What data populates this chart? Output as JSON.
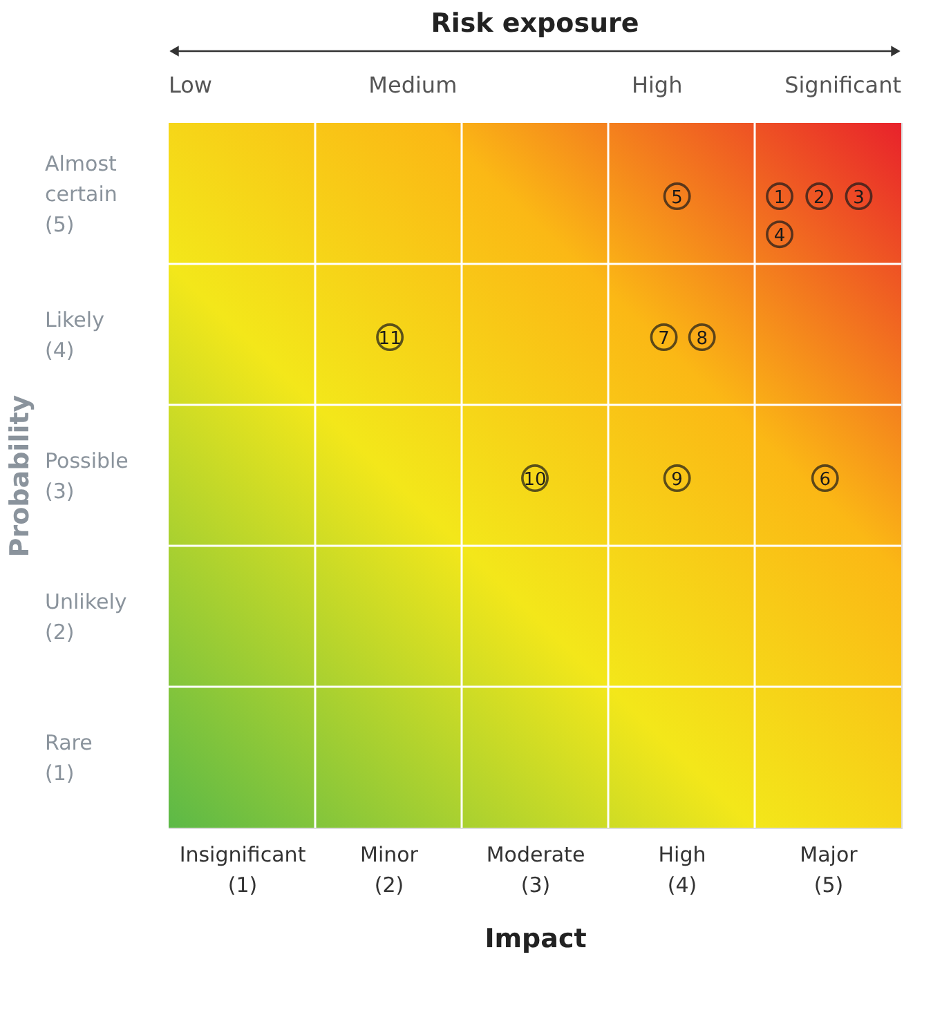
{
  "chart_data": {
    "type": "scatter",
    "xlabel": "Impact",
    "ylabel": "Probability",
    "x2label": "Risk exposure",
    "annotations": [
      "Low",
      "Medium",
      "High",
      "Significant",
      {
        "text": "1",
        "x": 4.67,
        "y": 4.98
      },
      {
        "text": "2",
        "x": 4.94,
        "y": 4.98
      },
      {
        "text": "3",
        "x": 5.21,
        "y": 4.98
      },
      {
        "text": "4",
        "x": 4.67,
        "y": 4.71
      },
      {
        "text": "5",
        "x": 3.97,
        "y": 4.98
      },
      {
        "text": "6",
        "x": 4.98,
        "y": 2.98
      },
      {
        "text": "7",
        "x": 3.88,
        "y": 3.98
      },
      {
        "text": "8",
        "x": 4.14,
        "y": 3.98
      },
      {
        "text": "9",
        "x": 3.97,
        "y": 2.98
      },
      {
        "text": "10",
        "x": 3.0,
        "y": 2.98
      },
      {
        "text": "11",
        "x": 2.01,
        "y": 3.98
      }
    ],
    "x": [
      4.67,
      4.94,
      5.21,
      4.67,
      3.97,
      4.98,
      3.88,
      4.14,
      3.97,
      3.0,
      2.01
    ],
    "series": [
      {
        "color": "#1a1a1a",
        "values": [
          4.98,
          4.98,
          4.98,
          4.71,
          4.98,
          2.98,
          3.98,
          3.98,
          2.98,
          2.98,
          3.98
        ]
      }
    ],
    "xlim": [
      0.5,
      5.5
    ],
    "ylim": [
      0.5,
      5.5
    ],
    "xticks": [
      {
        "value": 1,
        "label": "Insignificant (1)"
      },
      {
        "value": 2,
        "label": "Minor (2)"
      },
      {
        "value": 3,
        "label": "Moderate (3)"
      },
      {
        "value": 4,
        "label": "High (4)"
      },
      {
        "value": 5,
        "label": "Major (5)"
      }
    ],
    "yticks": [
      {
        "value": 1,
        "label": "Rare (1)"
      },
      {
        "value": 2,
        "label": "Unlikely (2)"
      },
      {
        "value": 3,
        "label": "Possible (3)"
      },
      {
        "value": 4,
        "label": "Likely (4)"
      },
      {
        "value": 5,
        "label": "Almost certain (5)"
      }
    ],
    "marker": "circle"
  }
}
